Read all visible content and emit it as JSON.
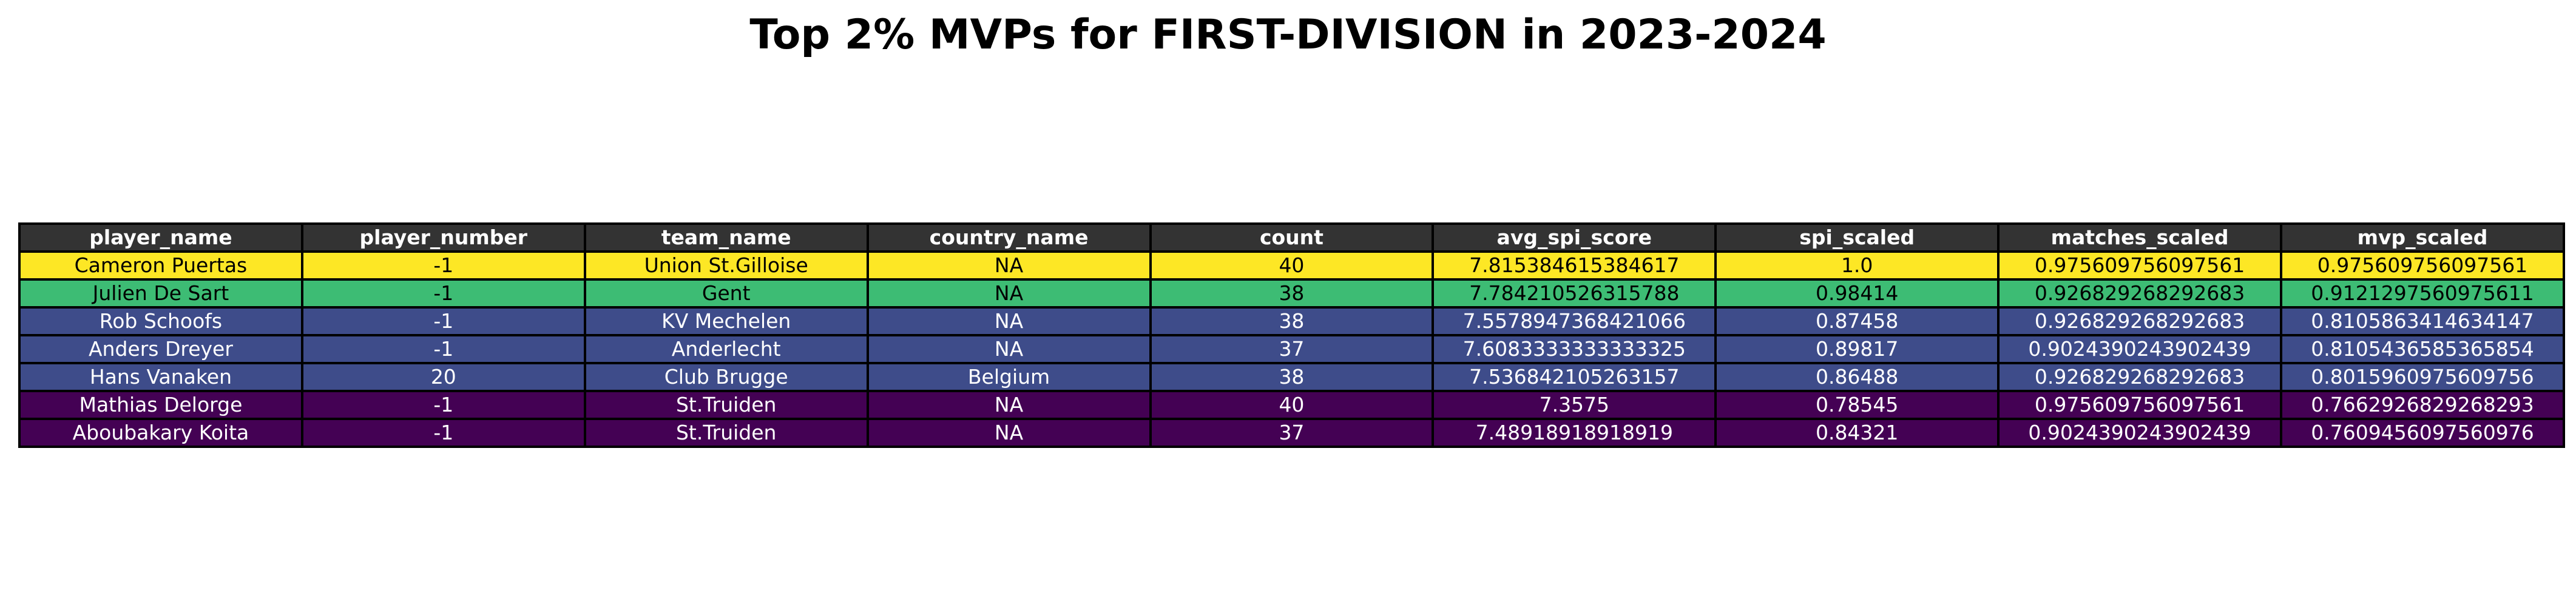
{
  "chart_data": {
    "type": "table",
    "title": "Top 2% MVPs for FIRST-DIVISION in 2023-2024",
    "header_color": "#333333",
    "header_text_color": "#ffffff",
    "columns": [
      "player_name",
      "player_number",
      "team_name",
      "country_name",
      "count",
      "avg_spi_score",
      "spi_scaled",
      "matches_scaled",
      "mvp_scaled"
    ],
    "rows": [
      {
        "cells": [
          "Cameron Puertas",
          "-1",
          "Union St.Gilloise",
          "NA",
          "40",
          "7.815384615384617",
          "1.0",
          "0.975609756097561",
          "0.975609756097561"
        ],
        "bg": "#fde725",
        "fg": "#000000"
      },
      {
        "cells": [
          "Julien De Sart",
          "-1",
          "Gent",
          "NA",
          "38",
          "7.784210526315788",
          "0.98414",
          "0.926829268292683",
          "0.9121297560975611"
        ],
        "bg": "#3dbc74",
        "fg": "#000000"
      },
      {
        "cells": [
          "Rob Schoofs",
          "-1",
          "KV Mechelen",
          "NA",
          "38",
          "7.5578947368421066",
          "0.87458",
          "0.926829268292683",
          "0.8105863414634147"
        ],
        "bg": "#3e4c8a",
        "fg": "#ffffff"
      },
      {
        "cells": [
          "Anders Dreyer",
          "-1",
          "Anderlecht",
          "NA",
          "37",
          "7.6083333333333325",
          "0.89817",
          "0.9024390243902439",
          "0.8105436585365854"
        ],
        "bg": "#3e4c8a",
        "fg": "#ffffff"
      },
      {
        "cells": [
          "Hans Vanaken",
          "20",
          "Club Brugge",
          "Belgium",
          "38",
          "7.536842105263157",
          "0.86488",
          "0.926829268292683",
          "0.8015960975609756"
        ],
        "bg": "#3e4c8a",
        "fg": "#ffffff"
      },
      {
        "cells": [
          "Mathias Delorge",
          "-1",
          "St.Truiden",
          "NA",
          "40",
          "7.3575",
          "0.78545",
          "0.975609756097561",
          "0.7662926829268293"
        ],
        "bg": "#440154",
        "fg": "#ffffff"
      },
      {
        "cells": [
          "Aboubakary Koita",
          "-1",
          "St.Truiden",
          "NA",
          "37",
          "7.48918918918919",
          "0.84321",
          "0.9024390243902439",
          "0.7609456097560976"
        ],
        "bg": "#440154",
        "fg": "#ffffff"
      }
    ]
  }
}
